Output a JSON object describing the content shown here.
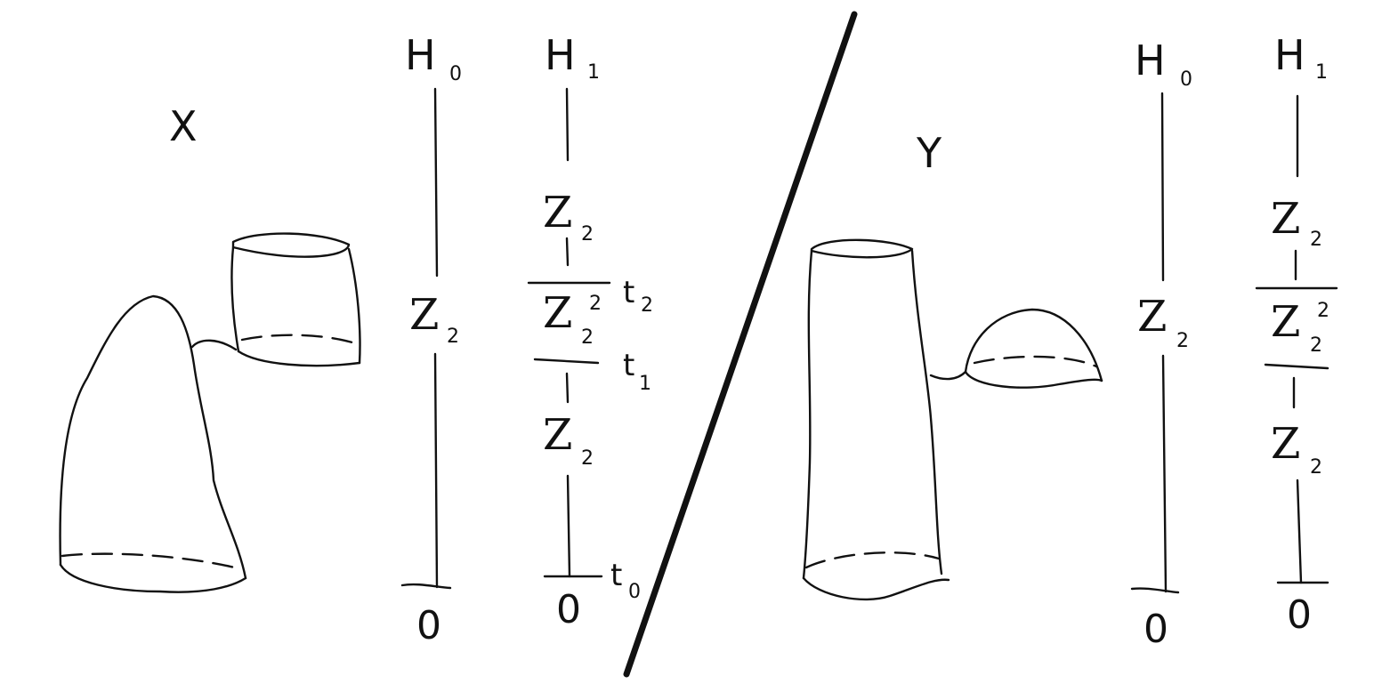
{
  "spaces": {
    "left": "X",
    "right": "Y"
  },
  "barcodes": {
    "h0_label": "H",
    "h0_sub": "0",
    "h1_label": "H",
    "h1_sub": "1",
    "group": "Z",
    "group_sub": "2",
    "group_sq_sup": "2",
    "zero": "0"
  },
  "times": {
    "t": "t",
    "t0_sub": "0",
    "t1_sub": "1",
    "t2_sub": "2"
  },
  "colors": {
    "ink": "#111111",
    "background": "#ffffff"
  }
}
